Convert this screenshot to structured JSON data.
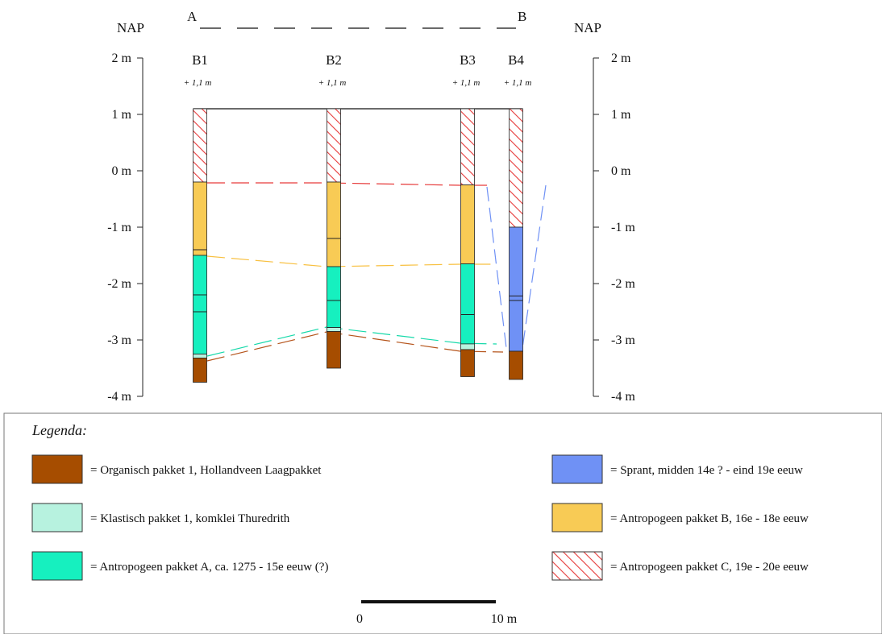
{
  "profile": {
    "left_label": "NAP",
    "right_label": "NAP",
    "start_label": "A",
    "end_label": "B",
    "axis_ticks": [
      "2 m",
      "1 m",
      "0 m",
      "-1 m",
      "-2 m",
      "-3 m",
      "-4 m"
    ],
    "axis_values": [
      2,
      1,
      0,
      -1,
      -2,
      -3,
      -4
    ],
    "surface_nap_m": 1.1
  },
  "boreholes": [
    {
      "name": "B1",
      "elevation": "+ 1,1 m",
      "top_m": 1.1,
      "layers": [
        {
          "type": "C",
          "top": 1.1,
          "bottom": -0.2
        },
        {
          "type": "B",
          "top": -0.2,
          "bottom": -1.5,
          "lines": [
            -1.4
          ]
        },
        {
          "type": "A",
          "top": -1.5,
          "bottom": -3.25,
          "lines": [
            -2.2,
            -2.5
          ]
        },
        {
          "type": "K",
          "top": -3.25,
          "bottom": -3.32
        },
        {
          "type": "O",
          "top": -3.32,
          "bottom": -3.75
        }
      ]
    },
    {
      "name": "B2",
      "elevation": "+ 1,1 m",
      "top_m": 1.1,
      "layers": [
        {
          "type": "C",
          "top": 1.1,
          "bottom": -0.2
        },
        {
          "type": "B",
          "top": -0.2,
          "bottom": -1.7,
          "lines": [
            -1.2
          ]
        },
        {
          "type": "A",
          "top": -1.7,
          "bottom": -2.78,
          "lines": [
            -2.3
          ]
        },
        {
          "type": "K",
          "top": -2.78,
          "bottom": -2.85
        },
        {
          "type": "O",
          "top": -2.85,
          "bottom": -3.5
        }
      ]
    },
    {
      "name": "B3",
      "elevation": "+ 1,1 m",
      "top_m": 1.1,
      "layers": [
        {
          "type": "C",
          "top": 1.1,
          "bottom": -0.25
        },
        {
          "type": "B",
          "top": -0.25,
          "bottom": -1.65
        },
        {
          "type": "A",
          "top": -1.65,
          "bottom": -3.07,
          "lines": [
            -2.55
          ]
        },
        {
          "type": "K",
          "top": -3.07,
          "bottom": -3.17
        },
        {
          "type": "O",
          "top": -3.17,
          "bottom": -3.65
        }
      ]
    },
    {
      "name": "B4",
      "elevation": "+ 1,1 m",
      "top_m": 1.1,
      "layers": [
        {
          "type": "C",
          "top": 1.1,
          "bottom": -1.0
        },
        {
          "type": "S",
          "top": -1.0,
          "bottom": -3.2,
          "lines": [
            -2.22,
            -2.3
          ]
        },
        {
          "type": "O",
          "top": -3.2,
          "bottom": -3.7
        }
      ]
    }
  ],
  "legend": {
    "title": "Legenda:",
    "items": [
      {
        "key": "O",
        "label": "= Organisch pakket 1, Hollandveen Laagpakket",
        "color": "#a64d00"
      },
      {
        "key": "K",
        "label": "= Klastisch pakket 1, komklei Thuredrith",
        "color": "#b7f2df"
      },
      {
        "key": "A",
        "label": "= Antropogeen pakket A, ca. 1275 - 15e eeuw (?)",
        "color": "#16f0bf"
      },
      {
        "key": "S",
        "label": "= Sprant, midden 14e ? - eind 19e eeuw",
        "color": "#6f91f5"
      },
      {
        "key": "B",
        "label": "= Antropogeen pakket B, 16e - 18e eeuw",
        "color": "#f8cb55"
      },
      {
        "key": "C",
        "label": "= Antropogeen pakket C, 19e - 20e eeuw",
        "color": "#e63a3a"
      }
    ]
  },
  "scale_bar": {
    "start_label": "0",
    "end_label": "10 m"
  }
}
